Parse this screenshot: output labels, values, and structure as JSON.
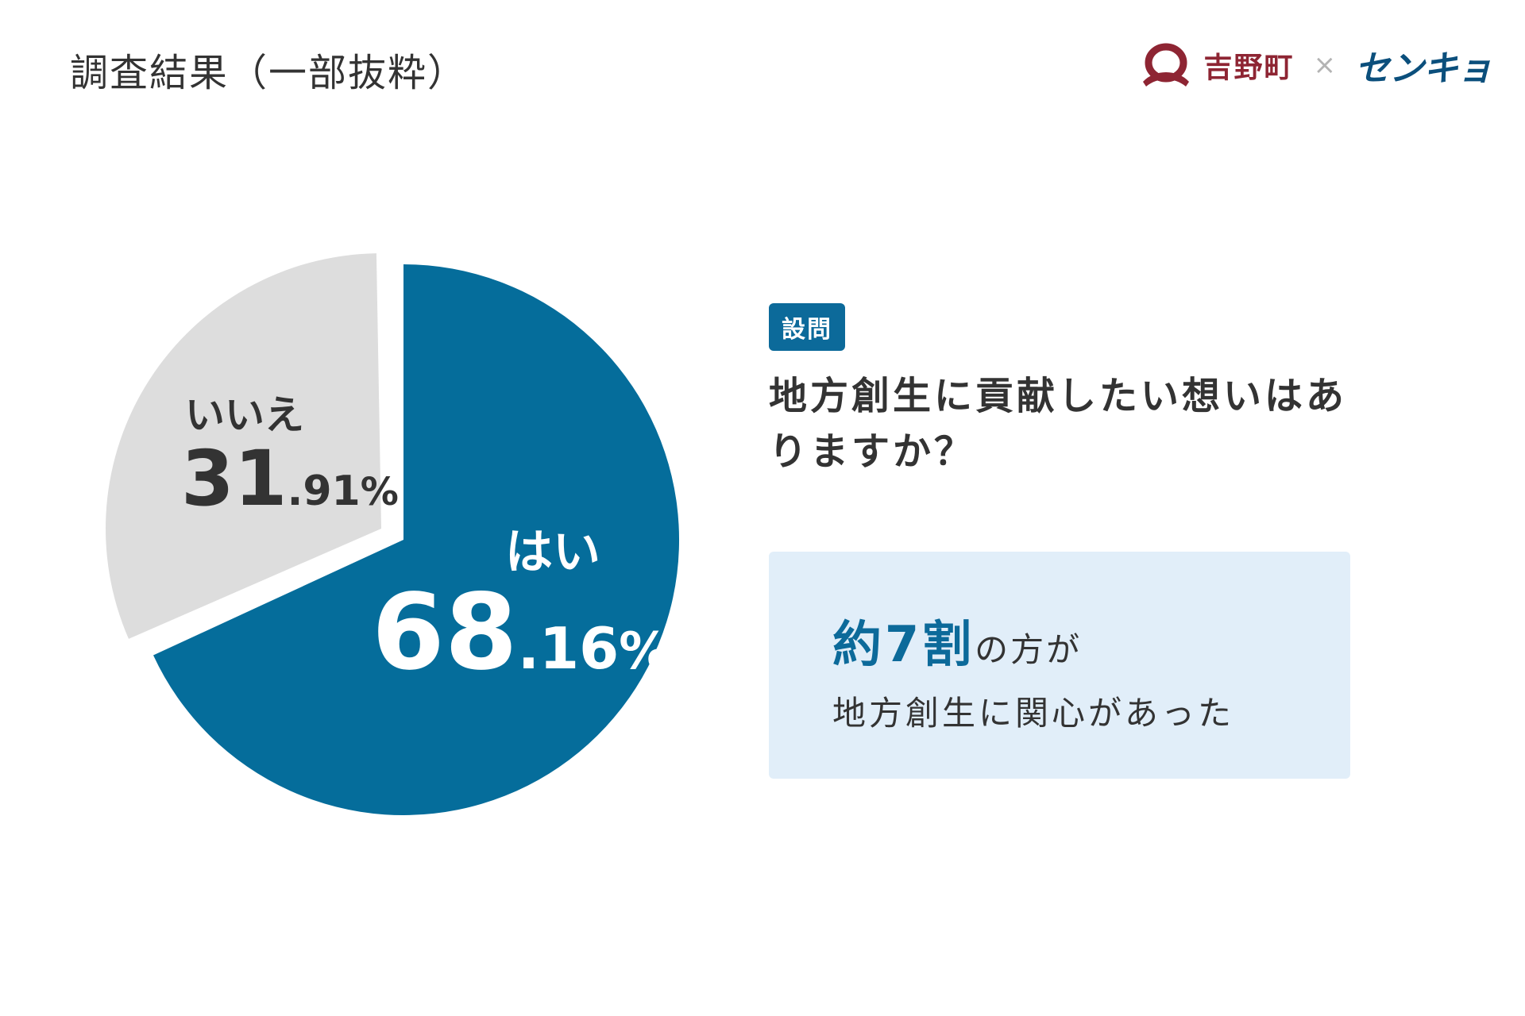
{
  "header": {
    "title": "調査結果（一部抜粋）",
    "logo_town": "吉野町",
    "logo_separator": "×",
    "logo_brand": "センキョ"
  },
  "colors": {
    "yes": "#056d9b",
    "no": "#dddddd",
    "accent": "#0c6a9a",
    "box_bg": "#e1eef9",
    "town_red": "#8e2533",
    "brand_blue": "#0b4f7c"
  },
  "question": {
    "badge": "設問",
    "text": "地方創生に貢献したい想いはありますか？"
  },
  "result": {
    "highlight": "約7割",
    "line1_rest": "の方が",
    "line2": "地方創生に関心があった"
  },
  "chart_data": {
    "type": "pie",
    "categories": [
      "はい",
      "いいえ"
    ],
    "values": [
      68.16,
      31.91
    ],
    "unit": "%",
    "labels": [
      {
        "name": "はい",
        "int": "68",
        "dec": ".16",
        "pct": "%"
      },
      {
        "name": "いいえ",
        "int": "31",
        "dec": ".91",
        "pct": "%"
      }
    ]
  }
}
